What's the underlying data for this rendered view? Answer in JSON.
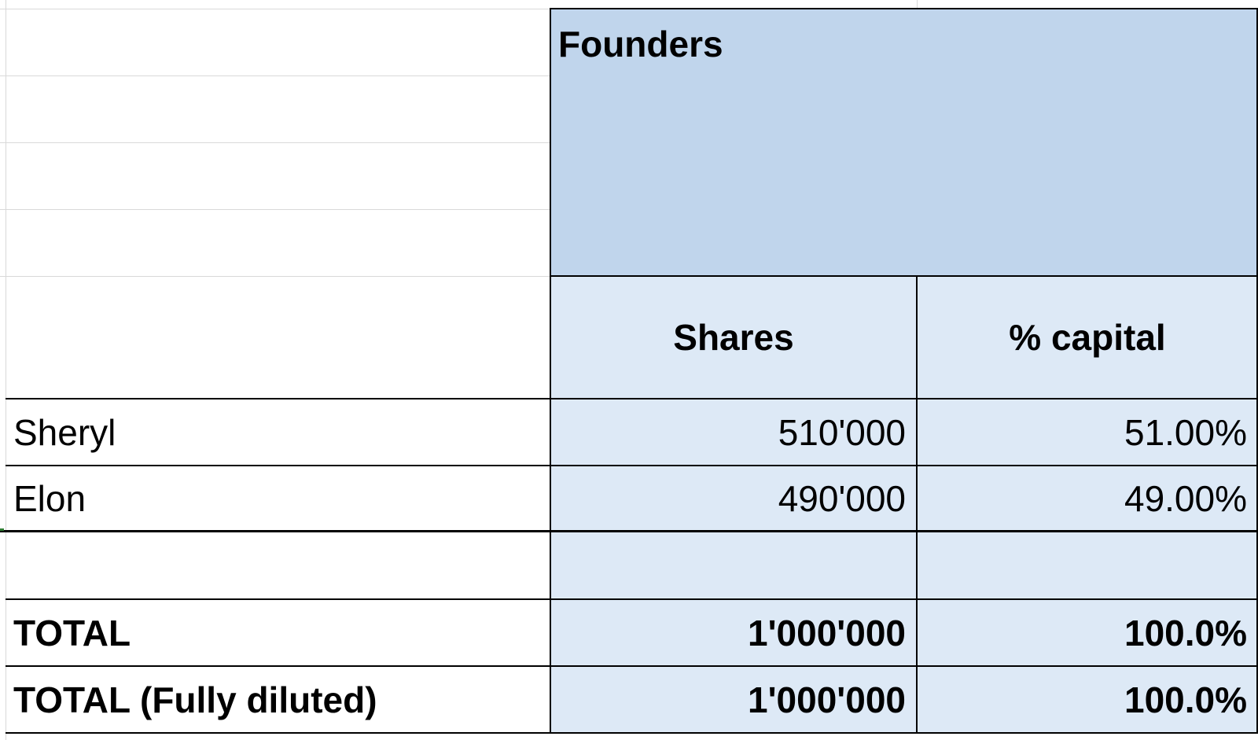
{
  "table": {
    "group_header": "Founders",
    "columns": {
      "shares": "Shares",
      "capital": "% capital"
    },
    "rows": [
      {
        "name": "Sheryl",
        "shares": "510'000",
        "capital": "51.00%"
      },
      {
        "name": "Elon",
        "shares": "490'000",
        "capital": "49.00%"
      }
    ],
    "totals": [
      {
        "name": "TOTAL",
        "shares": "1'000'000",
        "capital": "100.0%"
      },
      {
        "name": "TOTAL (Fully diluted)",
        "shares": "1'000'000",
        "capital": "100.0%"
      }
    ]
  },
  "colors": {
    "header_fill": "#c0d5ec",
    "body_fill": "#dde9f6",
    "gridline": "#d9d9d9",
    "border": "#000000"
  }
}
